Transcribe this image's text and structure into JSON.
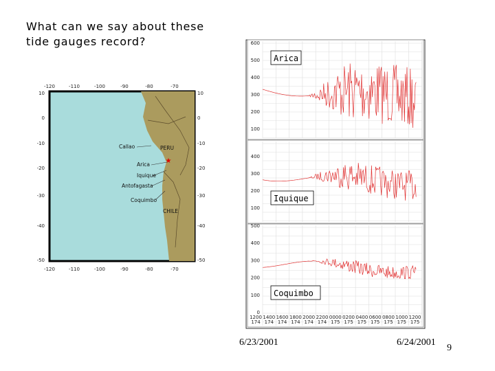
{
  "title_lines": [
    "What can we say about these",
    "tide gauges record?"
  ],
  "map": {
    "top_ticks": [
      "-120",
      "-110",
      "-100",
      "-90",
      "-80",
      "-70"
    ],
    "bottom_ticks": [
      "-120",
      "-110",
      "-100",
      "-90",
      "-80",
      "-70"
    ],
    "left_ticks": [
      "10",
      "0",
      "-10",
      "-20",
      "-30",
      "-40",
      "-50"
    ],
    "right_ticks": [
      "10",
      "0",
      "-10",
      "-20",
      "-30",
      "-40",
      "-50"
    ],
    "places": [
      "Callao",
      "PERU",
      "Arica",
      "Iquique",
      "Antofagasta",
      "Coquimbo",
      "CHILE"
    ]
  },
  "gauges": [
    {
      "label": "Arica",
      "yticks": [
        "600",
        "500",
        "400",
        "300",
        "200",
        "100"
      ]
    },
    {
      "label": "Iquique",
      "yticks": [
        "400",
        "300",
        "200",
        "100"
      ]
    },
    {
      "label": "Coquimbo",
      "yticks": [
        "500",
        "400",
        "300",
        "200",
        "100",
        "0"
      ]
    }
  ],
  "x_ticks": [
    {
      "time": "1200",
      "day": "174"
    },
    {
      "time": "1400",
      "day": "174"
    },
    {
      "time": "1600",
      "day": "174"
    },
    {
      "time": "1800",
      "day": "174"
    },
    {
      "time": "2000",
      "day": "174"
    },
    {
      "time": "2200",
      "day": "174"
    },
    {
      "time": "0000",
      "day": "175"
    },
    {
      "time": "0200",
      "day": "175"
    },
    {
      "time": "0400",
      "day": "175"
    },
    {
      "time": "0600",
      "day": "175"
    },
    {
      "time": "0800",
      "day": "175"
    },
    {
      "time": "1000",
      "day": "175"
    },
    {
      "time": "1200",
      "day": "175"
    }
  ],
  "dates": [
    "6/23/2001",
    "6/24/2001"
  ],
  "page_number": "9"
}
